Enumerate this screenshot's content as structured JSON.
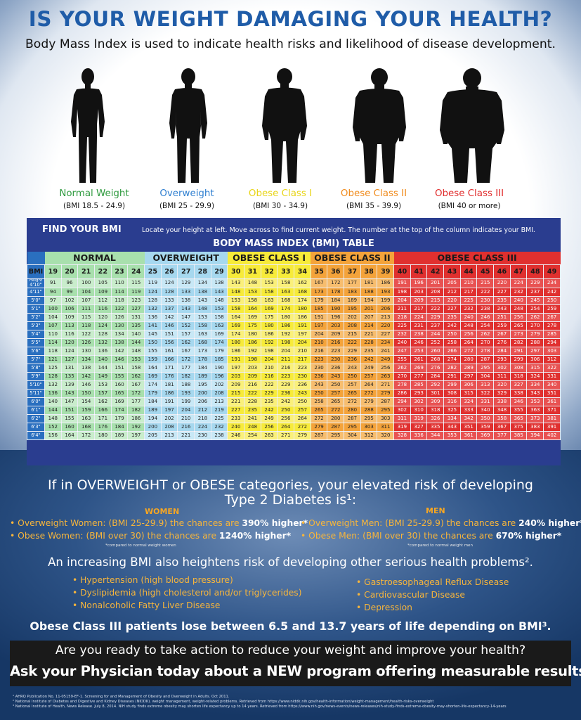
{
  "title": "IS YOUR WEIGHT DAMAGING YOUR HEALTH?",
  "subtitle": "Body Mass Index is used to indicate health risks and likelihood of disease development.",
  "figures": [
    {
      "label": "Normal Weight",
      "range": "(BMI 18.5 - 24.9)",
      "color": "#2e9a3e"
    },
    {
      "label": "Overweight",
      "range": "(BMI 25 - 29.9)",
      "color": "#2f7fd0"
    },
    {
      "label": "Obese Class I",
      "range": "(BMI 30 - 34.9)",
      "color": "#e8d416"
    },
    {
      "label": "Obese Class II",
      "range": "(BMI 35 - 39.9)",
      "color": "#f08a1a"
    },
    {
      "label": "Obese Class III",
      "range": "(BMI 40 or more)",
      "color": "#e02a2a"
    }
  ],
  "table": {
    "find_your_bmi": "FIND YOUR BMI",
    "instructions": "Locate your height at left. Move across to find current weight. The number at the top of the column indicates your BMI.",
    "title": "BODY MASS INDEX (BMI) TABLE",
    "categories": [
      "NORMAL",
      "OVERWEIGHT",
      "OBESE CLASS I",
      "OBESE CLASS II",
      "OBESE CLASS III"
    ],
    "bmi_label": "BMI",
    "height_label": "Height",
    "bmi_values": [
      "19",
      "20",
      "21",
      "22",
      "23",
      "24",
      "25",
      "26",
      "27",
      "28",
      "29",
      "30",
      "31",
      "32",
      "33",
      "34",
      "35",
      "36",
      "37",
      "38",
      "39",
      "40",
      "41",
      "42",
      "43",
      "44",
      "45",
      "46",
      "47",
      "48",
      "49"
    ],
    "rows": [
      {
        "h": "4'10\"",
        "w": [
          "91",
          "96",
          "100",
          "105",
          "110",
          "115",
          "119",
          "124",
          "129",
          "134",
          "138",
          "143",
          "148",
          "153",
          "158",
          "162",
          "167",
          "172",
          "177",
          "181",
          "186",
          "191",
          "196",
          "201",
          "205",
          "210",
          "215",
          "220",
          "224",
          "229",
          "234"
        ]
      },
      {
        "h": "4'11\"",
        "w": [
          "94",
          "99",
          "104",
          "109",
          "114",
          "119",
          "124",
          "128",
          "133",
          "138",
          "143",
          "148",
          "153",
          "158",
          "163",
          "168",
          "173",
          "178",
          "183",
          "188",
          "193",
          "198",
          "203",
          "208",
          "212",
          "217",
          "222",
          "227",
          "232",
          "237",
          "242"
        ]
      },
      {
        "h": "5'0\"",
        "w": [
          "97",
          "102",
          "107",
          "112",
          "118",
          "123",
          "128",
          "133",
          "138",
          "143",
          "148",
          "153",
          "158",
          "163",
          "168",
          "174",
          "179",
          "184",
          "189",
          "194",
          "199",
          "204",
          "209",
          "215",
          "220",
          "225",
          "230",
          "235",
          "240",
          "245",
          "250"
        ]
      },
      {
        "h": "5'1\"",
        "w": [
          "100",
          "106",
          "111",
          "116",
          "122",
          "127",
          "132",
          "137",
          "143",
          "148",
          "153",
          "158",
          "164",
          "169",
          "174",
          "180",
          "185",
          "190",
          "195",
          "201",
          "206",
          "211",
          "217",
          "222",
          "227",
          "232",
          "238",
          "243",
          "248",
          "254",
          "259"
        ]
      },
      {
        "h": "5'2\"",
        "w": [
          "104",
          "109",
          "115",
          "120",
          "126",
          "131",
          "136",
          "142",
          "147",
          "153",
          "158",
          "164",
          "169",
          "175",
          "180",
          "186",
          "191",
          "196",
          "202",
          "207",
          "213",
          "218",
          "224",
          "229",
          "235",
          "240",
          "246",
          "251",
          "256",
          "262",
          "267"
        ]
      },
      {
        "h": "5'3\"",
        "w": [
          "107",
          "113",
          "118",
          "124",
          "130",
          "135",
          "141",
          "146",
          "152",
          "158",
          "163",
          "169",
          "175",
          "180",
          "186",
          "191",
          "197",
          "203",
          "208",
          "214",
          "220",
          "225",
          "231",
          "237",
          "242",
          "248",
          "254",
          "259",
          "265",
          "270",
          "278"
        ]
      },
      {
        "h": "5'4\"",
        "w": [
          "110",
          "116",
          "122",
          "128",
          "134",
          "140",
          "145",
          "151",
          "157",
          "163",
          "169",
          "174",
          "180",
          "186",
          "192",
          "197",
          "204",
          "209",
          "215",
          "221",
          "227",
          "232",
          "238",
          "244",
          "250",
          "256",
          "262",
          "267",
          "273",
          "279",
          "285"
        ]
      },
      {
        "h": "5'5\"",
        "w": [
          "114",
          "120",
          "126",
          "132",
          "138",
          "144",
          "150",
          "156",
          "162",
          "168",
          "174",
          "180",
          "186",
          "192",
          "198",
          "204",
          "210",
          "216",
          "222",
          "228",
          "234",
          "240",
          "246",
          "252",
          "258",
          "264",
          "270",
          "276",
          "282",
          "288",
          "294"
        ]
      },
      {
        "h": "5'6\"",
        "w": [
          "118",
          "124",
          "130",
          "136",
          "142",
          "148",
          "155",
          "161",
          "167",
          "173",
          "179",
          "186",
          "192",
          "198",
          "204",
          "210",
          "216",
          "223",
          "229",
          "235",
          "241",
          "247",
          "253",
          "260",
          "266",
          "272",
          "278",
          "284",
          "291",
          "297",
          "303"
        ]
      },
      {
        "h": "5'7\"",
        "w": [
          "121",
          "127",
          "134",
          "140",
          "146",
          "153",
          "159",
          "166",
          "172",
          "178",
          "185",
          "191",
          "198",
          "204",
          "211",
          "217",
          "223",
          "230",
          "236",
          "242",
          "249",
          "255",
          "261",
          "268",
          "274",
          "280",
          "287",
          "293",
          "299",
          "306",
          "312"
        ]
      },
      {
        "h": "5'8\"",
        "w": [
          "125",
          "131",
          "138",
          "144",
          "151",
          "158",
          "164",
          "171",
          "177",
          "184",
          "190",
          "197",
          "203",
          "210",
          "216",
          "223",
          "230",
          "236",
          "243",
          "249",
          "256",
          "262",
          "269",
          "276",
          "282",
          "289",
          "295",
          "302",
          "308",
          "315",
          "322"
        ]
      },
      {
        "h": "5'9\"",
        "w": [
          "128",
          "135",
          "142",
          "149",
          "155",
          "162",
          "169",
          "176",
          "182",
          "189",
          "196",
          "203",
          "209",
          "216",
          "223",
          "230",
          "236",
          "243",
          "250",
          "257",
          "263",
          "270",
          "277",
          "284",
          "291",
          "297",
          "304",
          "311",
          "318",
          "324",
          "331"
        ]
      },
      {
        "h": "5'10\"",
        "w": [
          "132",
          "139",
          "146",
          "153",
          "160",
          "167",
          "174",
          "181",
          "188",
          "195",
          "202",
          "209",
          "216",
          "222",
          "229",
          "236",
          "243",
          "250",
          "257",
          "264",
          "271",
          "278",
          "285",
          "292",
          "299",
          "306",
          "313",
          "320",
          "327",
          "334",
          "340"
        ]
      },
      {
        "h": "5'11\"",
        "w": [
          "136",
          "143",
          "150",
          "157",
          "165",
          "172",
          "179",
          "186",
          "193",
          "200",
          "208",
          "215",
          "222",
          "229",
          "236",
          "243",
          "250",
          "257",
          "265",
          "272",
          "279",
          "286",
          "293",
          "301",
          "308",
          "315",
          "322",
          "329",
          "338",
          "343",
          "351"
        ]
      },
      {
        "h": "6'0\"",
        "w": [
          "140",
          "147",
          "154",
          "162",
          "169",
          "177",
          "184",
          "191",
          "199",
          "206",
          "213",
          "221",
          "228",
          "235",
          "242",
          "250",
          "258",
          "265",
          "272",
          "279",
          "287",
          "294",
          "302",
          "309",
          "316",
          "324",
          "331",
          "338",
          "346",
          "353",
          "361"
        ]
      },
      {
        "h": "6'1\"",
        "w": [
          "144",
          "151",
          "159",
          "166",
          "174",
          "182",
          "189",
          "197",
          "204",
          "212",
          "219",
          "227",
          "235",
          "242",
          "250",
          "257",
          "265",
          "272",
          "280",
          "288",
          "295",
          "302",
          "310",
          "318",
          "325",
          "333",
          "340",
          "348",
          "355",
          "363",
          "371"
        ]
      },
      {
        "h": "6'2\"",
        "w": [
          "148",
          "155",
          "163",
          "171",
          "179",
          "186",
          "194",
          "202",
          "210",
          "218",
          "225",
          "233",
          "241",
          "249",
          "256",
          "264",
          "272",
          "280",
          "287",
          "295",
          "303",
          "311",
          "319",
          "326",
          "334",
          "342",
          "350",
          "358",
          "365",
          "373",
          "381"
        ]
      },
      {
        "h": "6'3\"",
        "w": [
          "152",
          "160",
          "168",
          "176",
          "184",
          "192",
          "200",
          "208",
          "216",
          "224",
          "232",
          "240",
          "248",
          "256",
          "264",
          "272",
          "279",
          "287",
          "295",
          "303",
          "311",
          "319",
          "327",
          "335",
          "343",
          "351",
          "359",
          "367",
          "375",
          "383",
          "391"
        ]
      },
      {
        "h": "6'4\"",
        "w": [
          "156",
          "164",
          "172",
          "180",
          "189",
          "197",
          "205",
          "213",
          "221",
          "230",
          "238",
          "246",
          "254",
          "263",
          "271",
          "279",
          "287",
          "295",
          "304",
          "312",
          "320",
          "328",
          "336",
          "344",
          "353",
          "361",
          "369",
          "377",
          "385",
          "394",
          "402"
        ]
      }
    ]
  },
  "risk": {
    "line1": "If in OVERWEIGHT or OBESE categories, your elevated risk of developing",
    "line2": "Type 2 Diabetes is¹:",
    "women_header": "WOMEN",
    "men_header": "MEN",
    "women": [
      {
        "text": "• Overweight Women: (BMI 25-29.9) the chances are ",
        "highlight": "390% higher*"
      },
      {
        "text": "• Obese Women: (BMI over 30) the chances are ",
        "highlight": "1240% higher*"
      }
    ],
    "women_note": "*compared to normal weight women",
    "men": [
      {
        "text": "• Overweight Men: (BMI 25-29.9) the chances are ",
        "highlight": "240% higher*"
      },
      {
        "text": "• Obese Men: (BMI over 30) the chances are ",
        "highlight": "670% higher*"
      }
    ],
    "men_note": "*compared to normal weight men"
  },
  "problems": {
    "heading": "An increasing BMI also heightens risk of developing other serious health problems².",
    "left": [
      "• Hypertension (high blood pressure)",
      "• Dyslipidemia (high cholesterol and/or triglycerides)",
      "• Nonalcoholic Fatty Liver Disease"
    ],
    "right": [
      "• Gastroesophageal Reflux Disease",
      "• Cardiovascular Disease",
      "• Depression"
    ]
  },
  "obese_iii": "Obese Class III patients lose between 6.5 and 13.7 years of life depending on BMI³.",
  "cta": {
    "line1": "Are you ready to take action to reduce your weight and improve your health?",
    "line2": "Ask your Physician today about a NEW program offering measurable results."
  },
  "footnotes": [
    "¹ AHRQ Publication No. 11-05159-EF-1. Screening for and Management of Obesity and Overweight in Adults. Oct 2011.",
    "² National Institute of Diabetes and Digestive and Kidney Diseases (NIDDK). weight management, weight-related problems. Retrieved from https://www.niddk.nih.gov/health-information/weight-management/health-risks-overweight",
    "³ National Institute of Health, News Release. July 8, 2014. NIH study finds extreme obesity may shorten life expectancy up to 14 years. Retrieved from https://www.nih.gov/news-events/news-releases/nih-study-finds-extreme-obesity-may-shorten-life-expectancy-14-years"
  ]
}
